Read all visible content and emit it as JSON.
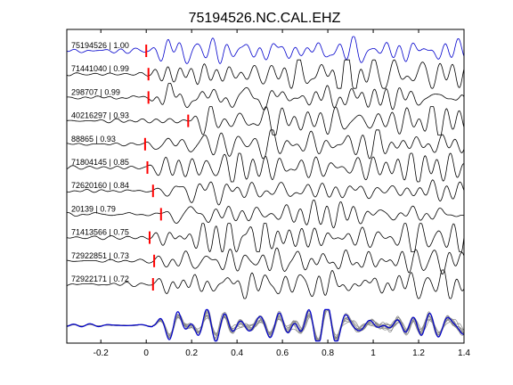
{
  "chart_data": {
    "type": "line",
    "title": "75194526.NC.CAL.EHZ",
    "xlim": [
      -0.35,
      1.4
    ],
    "xticks": [
      -0.2,
      0,
      0.2,
      0.4,
      0.6,
      0.8,
      1,
      1.2,
      1.4
    ],
    "xtick_labels": [
      "-0.2",
      "0",
      "0.2",
      "0.4",
      "0.6",
      "0.8",
      "1",
      "1.2",
      "1.4"
    ],
    "xlabel": "",
    "ylabel": "",
    "grid": false,
    "colors": {
      "reference": "#0000cc",
      "trace": "#000000",
      "pick": "#ff0000",
      "stack_trace": "#888888"
    },
    "series": [
      {
        "label": "75194526 | 1.00",
        "pick_time": 0.0,
        "reference": true
      },
      {
        "label": "71441040 | 0.99",
        "pick_time": 0.01
      },
      {
        "label": "298707 | 0.99",
        "pick_time": 0.01
      },
      {
        "label": "40216297 | 0.93",
        "pick_time": 0.185
      },
      {
        "label": "88865 | 0.93",
        "pick_time": -0.005
      },
      {
        "label": "71804145 | 0.85",
        "pick_time": 0.005
      },
      {
        "label": "72620160 | 0.84",
        "pick_time": 0.03
      },
      {
        "label": "20139 | 0.79",
        "pick_time": 0.065
      },
      {
        "label": "71413566 | 0.75",
        "pick_time": 0.015
      },
      {
        "label": "72922851 | 0.73",
        "pick_time": 0.035
      },
      {
        "label": "72922171 | 0.72",
        "pick_time": 0.03
      }
    ],
    "stack": {
      "n_traces": 10,
      "includes_reference": true
    }
  }
}
